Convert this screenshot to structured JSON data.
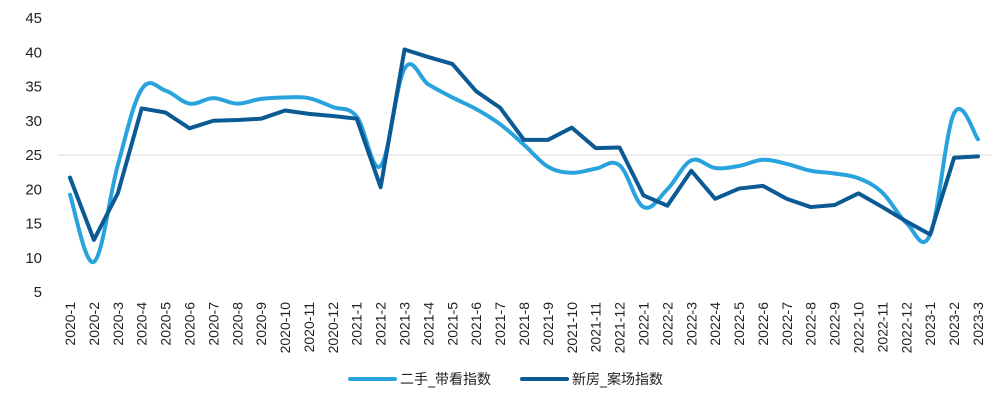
{
  "chart_data": {
    "type": "line",
    "title": "",
    "xlabel": "",
    "ylabel": "",
    "ylim": [
      5,
      45
    ],
    "yticks": [
      5,
      10,
      15,
      20,
      25,
      30,
      35,
      40,
      45
    ],
    "grid": "horizontal line at 25",
    "legend": "bottom-center",
    "categories": [
      "2020-1",
      "2020-2",
      "2020-3",
      "2020-4",
      "2020-5",
      "2020-6",
      "2020-7",
      "2020-8",
      "2020-9",
      "2020-10",
      "2020-11",
      "2020-12",
      "2021-1",
      "2021-2",
      "2021-3",
      "2021-4",
      "2021-5",
      "2021-6",
      "2021-7",
      "2021-8",
      "2021-9",
      "2021-10",
      "2021-11",
      "2021-12",
      "2022-1",
      "2022-2",
      "2022-3",
      "2022-4",
      "2022-5",
      "2022-6",
      "2022-7",
      "2022-8",
      "2022-9",
      "2022-10",
      "2022-11",
      "2022-12",
      "2023-1",
      "2023-2",
      "2023-3"
    ],
    "series": [
      {
        "name": "二手_带看指数",
        "color": "#29a3dd",
        "values": [
          19.2,
          9.4,
          23.5,
          34.6,
          34.4,
          32.5,
          33.3,
          32.5,
          33.2,
          33.4,
          33.3,
          32.0,
          30.6,
          23.4,
          37.6,
          35.3,
          33.4,
          31.7,
          29.5,
          26.5,
          23.3,
          22.4,
          23.0,
          23.5,
          17.4,
          20.0,
          24.2,
          23.1,
          23.4,
          24.3,
          23.7,
          22.7,
          22.3,
          21.6,
          19.5,
          15.1,
          13.4,
          31.1,
          27.3
        ]
      },
      {
        "name": "新房_案场指数",
        "color": "#0b5a94",
        "values": [
          21.7,
          12.6,
          19.4,
          31.8,
          31.2,
          28.9,
          30.0,
          30.1,
          30.3,
          31.5,
          31.0,
          30.7,
          30.3,
          20.3,
          40.4,
          39.3,
          38.3,
          34.3,
          31.9,
          27.2,
          27.2,
          29.0,
          26.0,
          26.1,
          19.1,
          17.6,
          22.7,
          18.6,
          20.1,
          20.5,
          18.6,
          17.4,
          17.7,
          19.4,
          17.4,
          15.3,
          13.4,
          24.6,
          24.8
        ]
      }
    ]
  }
}
